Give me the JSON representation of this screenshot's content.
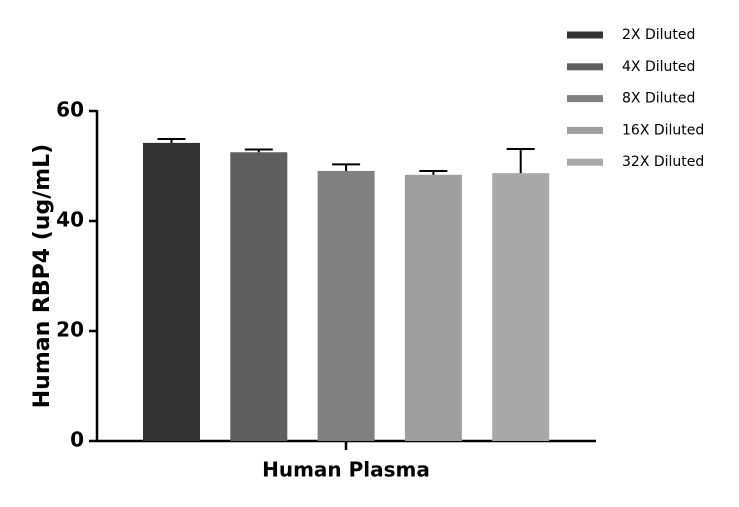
{
  "chart_data": {
    "type": "bar",
    "y_label": "Human RBP4 (ug/mL)",
    "categories": [
      "Human Plasma"
    ],
    "ylim": [
      0,
      60
    ],
    "yticks": [
      0,
      20,
      40,
      60
    ],
    "series": [
      {
        "name": "2X Diluted",
        "color": "#333333",
        "values": [
          54.2
        ],
        "errors": [
          0.7
        ]
      },
      {
        "name": "4X Diluted",
        "color": "#5f5f5f",
        "values": [
          52.5
        ],
        "errors": [
          0.5
        ]
      },
      {
        "name": "8X Diluted",
        "color": "#808080",
        "values": [
          49.1
        ],
        "errors": [
          1.2
        ]
      },
      {
        "name": "16X Diluted",
        "color": "#9e9e9e",
        "values": [
          48.4
        ],
        "errors": [
          0.7
        ]
      },
      {
        "name": "32X Diluted",
        "color": "#a8a8a8",
        "values": [
          48.7
        ],
        "errors": [
          4.4
        ]
      }
    ]
  }
}
